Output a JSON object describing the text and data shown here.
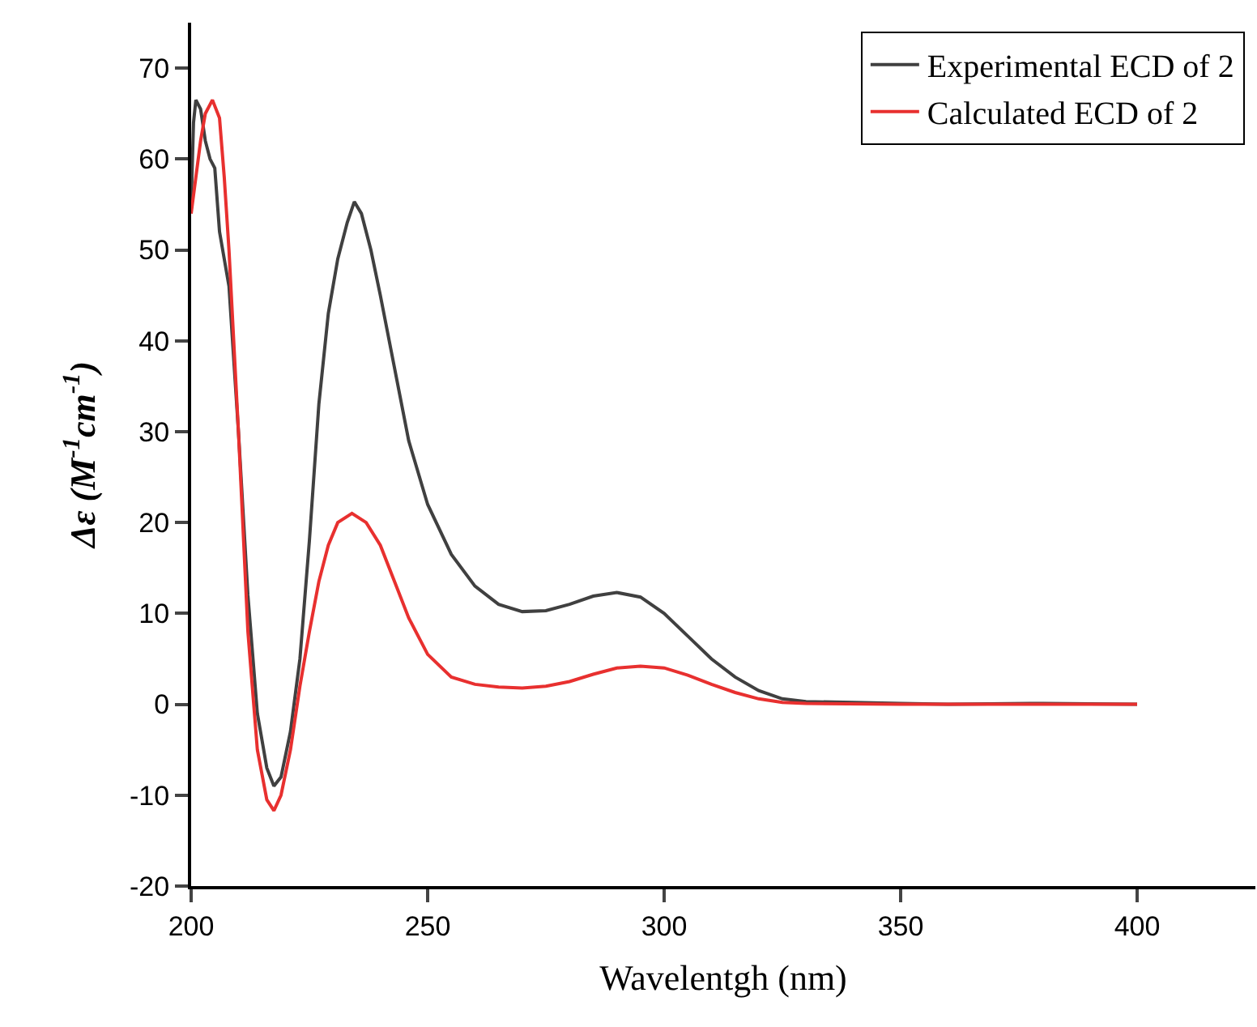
{
  "chart_data": {
    "type": "line",
    "xlabel": "Wavelentgh (nm)",
    "ylabel": "Δε (M$^{-1}$cm$^{-1}$)",
    "xlim": [
      200,
      425
    ],
    "xticks": [
      200,
      250,
      300,
      350,
      400
    ],
    "ylim": [
      -20,
      75
    ],
    "yticks": [
      -20,
      -10,
      0,
      10,
      20,
      30,
      40,
      50,
      60,
      70
    ],
    "legend": "top right",
    "marker": "none",
    "line_style": "solid",
    "series": [
      {
        "name": "Experimental ECD of 2",
        "color": "#404040",
        "x": [
          200,
          200.5,
          201,
          202,
          203,
          204,
          205,
          206,
          208,
          210,
          212,
          214,
          216,
          217.5,
          219,
          221,
          223,
          225,
          227,
          229,
          231,
          233,
          234.5,
          236,
          238,
          240,
          243,
          246,
          250,
          255,
          260,
          265,
          270,
          275,
          280,
          285,
          290,
          295,
          300,
          305,
          310,
          315,
          320,
          325,
          330,
          340,
          350,
          360,
          380,
          400
        ],
        "values": [
          55,
          64,
          66.5,
          65.5,
          62,
          60,
          59,
          52,
          46,
          30,
          12,
          -1,
          -7,
          -9,
          -8,
          -3,
          5,
          18,
          33,
          43,
          49,
          53,
          55.3,
          54,
          50,
          45,
          37,
          29,
          22,
          16.5,
          13,
          11,
          10.2,
          10.3,
          11,
          11.9,
          12.3,
          11.8,
          10,
          7.5,
          5,
          3,
          1.5,
          0.6,
          0.3,
          0.2,
          0.1,
          0,
          0.1,
          0
        ]
      },
      {
        "name": "Calculated ECD of 2",
        "color": "#e8302f",
        "x": [
          200,
          201,
          202,
          203,
          204.5,
          206,
          207,
          208,
          210,
          212,
          214,
          216,
          217.5,
          219,
          221,
          223,
          225,
          227,
          229,
          231,
          234,
          237,
          240,
          243,
          246,
          250,
          255,
          260,
          265,
          270,
          275,
          280,
          285,
          290,
          295,
          300,
          305,
          310,
          315,
          320,
          325,
          330,
          350,
          400
        ],
        "values": [
          54,
          58,
          62,
          65,
          66.5,
          64.5,
          58,
          50,
          30,
          8,
          -5,
          -10.5,
          -11.7,
          -10,
          -5,
          2,
          8,
          13.5,
          17.5,
          20,
          21,
          20,
          17.5,
          13.5,
          9.5,
          5.5,
          3,
          2.2,
          1.9,
          1.8,
          2,
          2.5,
          3.3,
          4,
          4.2,
          4,
          3.2,
          2.2,
          1.3,
          0.6,
          0.2,
          0.1,
          0,
          0
        ]
      }
    ]
  }
}
